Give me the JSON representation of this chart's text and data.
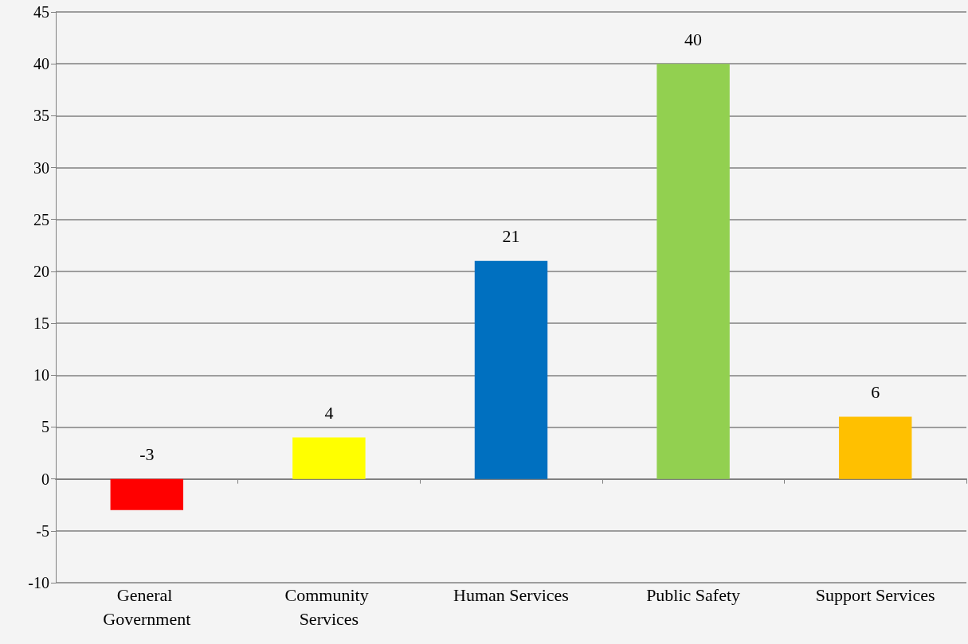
{
  "chart_data": {
    "type": "bar",
    "categories": [
      "General Government",
      "Community Services",
      "Human Services",
      "Public Safety",
      "Support Services"
    ],
    "values": [
      -3,
      4,
      21,
      40,
      6
    ],
    "colors": [
      "#ff0000",
      "#ffff00",
      "#0070c0",
      "#92d050",
      "#ffc000"
    ],
    "ylim": [
      -10,
      45
    ],
    "yticks": [
      -10,
      -5,
      0,
      5,
      10,
      15,
      20,
      25,
      30,
      35,
      40,
      45
    ],
    "grid": "y",
    "data_labels": true
  }
}
